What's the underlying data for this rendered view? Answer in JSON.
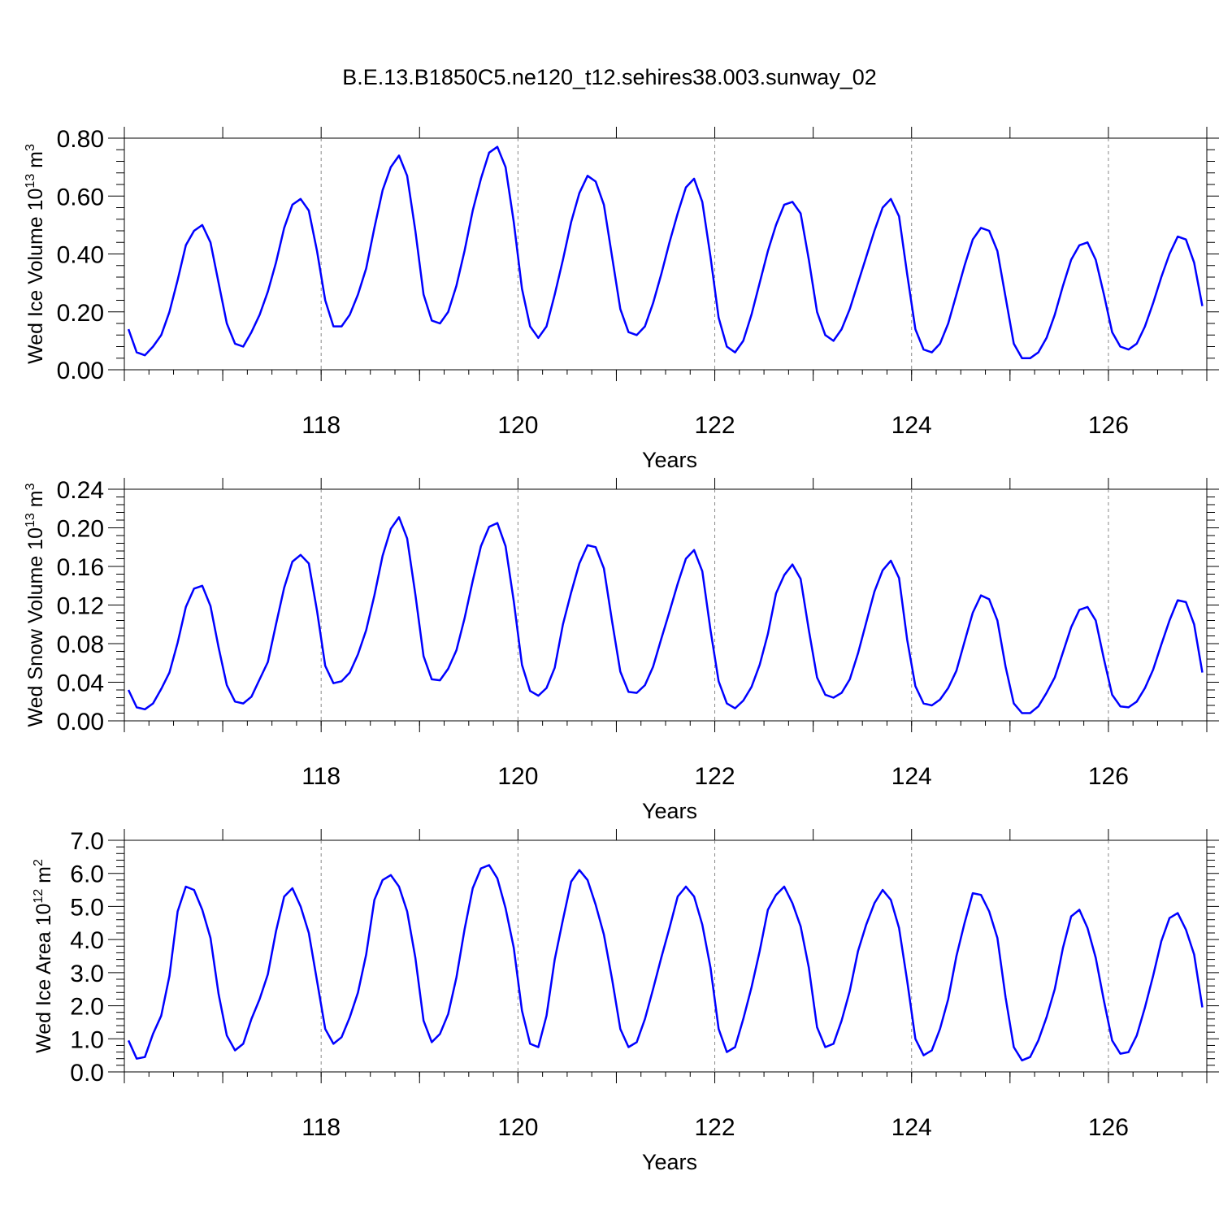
{
  "title": "B.E.13.B1850C5.ne120_t12.sehires38.003.sunway_02",
  "chart_data": [
    {
      "type": "line",
      "title": "B.E.13.B1850C5.ne120_t12.sehires38.003.sunway_02",
      "xlabel": "Years",
      "ylabel_main": "Wed Ice Volume 10",
      "ylabel_sup": "13",
      "ylabel_unit": " m",
      "ylabel_unit_sup": "3",
      "xlim": [
        116.0,
        127.0
      ],
      "ylim": [
        0.0,
        0.8
      ],
      "yticks": [
        "0.00",
        "0.20",
        "0.40",
        "0.60",
        "0.80"
      ],
      "xticks": [
        "118",
        "120",
        "122",
        "124",
        "126"
      ],
      "line_color": "#0000ff",
      "x_start": 116.042,
      "x_step": 0.0833,
      "values": [
        0.14,
        0.06,
        0.05,
        0.08,
        0.12,
        0.2,
        0.31,
        0.43,
        0.48,
        0.5,
        0.44,
        0.3,
        0.16,
        0.09,
        0.08,
        0.13,
        0.19,
        0.27,
        0.37,
        0.49,
        0.57,
        0.59,
        0.55,
        0.41,
        0.24,
        0.15,
        0.15,
        0.19,
        0.26,
        0.35,
        0.49,
        0.62,
        0.7,
        0.74,
        0.67,
        0.48,
        0.26,
        0.17,
        0.16,
        0.2,
        0.29,
        0.41,
        0.55,
        0.66,
        0.75,
        0.77,
        0.7,
        0.51,
        0.28,
        0.15,
        0.11,
        0.15,
        0.26,
        0.38,
        0.51,
        0.61,
        0.67,
        0.65,
        0.57,
        0.39,
        0.21,
        0.13,
        0.12,
        0.15,
        0.23,
        0.33,
        0.44,
        0.54,
        0.63,
        0.66,
        0.58,
        0.39,
        0.18,
        0.08,
        0.06,
        0.1,
        0.19,
        0.3,
        0.41,
        0.5,
        0.57,
        0.58,
        0.54,
        0.38,
        0.2,
        0.12,
        0.1,
        0.14,
        0.21,
        0.3,
        0.39,
        0.48,
        0.56,
        0.59,
        0.53,
        0.33,
        0.14,
        0.07,
        0.06,
        0.09,
        0.16,
        0.26,
        0.36,
        0.45,
        0.49,
        0.48,
        0.41,
        0.25,
        0.09,
        0.04,
        0.04,
        0.06,
        0.11,
        0.19,
        0.29,
        0.38,
        0.43,
        0.44,
        0.38,
        0.26,
        0.13,
        0.08,
        0.07,
        0.09,
        0.15,
        0.23,
        0.32,
        0.4,
        0.46,
        0.45,
        0.37,
        0.22
      ]
    },
    {
      "type": "line",
      "xlabel": "Years",
      "ylabel_main": "Wed Snow Volume 10",
      "ylabel_sup": "13",
      "ylabel_unit": " m",
      "ylabel_unit_sup": "3",
      "xlim": [
        116.0,
        127.0
      ],
      "ylim": [
        0.0,
        0.24
      ],
      "yticks": [
        "0.00",
        "0.04",
        "0.08",
        "0.12",
        "0.16",
        "0.20",
        "0.24"
      ],
      "xticks": [
        "118",
        "120",
        "122",
        "124",
        "126"
      ],
      "line_color": "#0000ff",
      "x_start": 116.042,
      "x_step": 0.0833,
      "values": [
        0.032,
        0.014,
        0.012,
        0.018,
        0.033,
        0.05,
        0.081,
        0.118,
        0.137,
        0.14,
        0.119,
        0.076,
        0.037,
        0.02,
        0.018,
        0.025,
        0.043,
        0.061,
        0.1,
        0.138,
        0.165,
        0.172,
        0.163,
        0.114,
        0.057,
        0.039,
        0.041,
        0.05,
        0.069,
        0.094,
        0.13,
        0.171,
        0.199,
        0.211,
        0.189,
        0.131,
        0.067,
        0.043,
        0.042,
        0.054,
        0.073,
        0.106,
        0.145,
        0.181,
        0.201,
        0.205,
        0.181,
        0.124,
        0.058,
        0.031,
        0.026,
        0.034,
        0.055,
        0.1,
        0.133,
        0.163,
        0.182,
        0.18,
        0.158,
        0.103,
        0.051,
        0.03,
        0.029,
        0.037,
        0.056,
        0.085,
        0.113,
        0.142,
        0.168,
        0.177,
        0.155,
        0.094,
        0.041,
        0.018,
        0.013,
        0.021,
        0.035,
        0.058,
        0.09,
        0.132,
        0.151,
        0.162,
        0.147,
        0.094,
        0.045,
        0.027,
        0.024,
        0.029,
        0.043,
        0.07,
        0.102,
        0.134,
        0.156,
        0.166,
        0.148,
        0.084,
        0.036,
        0.018,
        0.016,
        0.022,
        0.034,
        0.052,
        0.082,
        0.112,
        0.13,
        0.126,
        0.104,
        0.056,
        0.018,
        0.008,
        0.008,
        0.015,
        0.029,
        0.045,
        0.071,
        0.097,
        0.115,
        0.118,
        0.104,
        0.064,
        0.027,
        0.015,
        0.014,
        0.02,
        0.034,
        0.053,
        0.079,
        0.104,
        0.125,
        0.123,
        0.1,
        0.05
      ]
    },
    {
      "type": "line",
      "xlabel": "Years",
      "ylabel_main": "Wed Ice Area 10",
      "ylabel_sup": "12",
      "ylabel_unit": " m",
      "ylabel_unit_sup": "2",
      "xlim": [
        116.0,
        127.0
      ],
      "ylim": [
        0.0,
        7.0
      ],
      "yticks": [
        "0.0",
        "1.0",
        "2.0",
        "3.0",
        "4.0",
        "5.0",
        "6.0",
        "7.0"
      ],
      "xticks": [
        "118",
        "120",
        "122",
        "124",
        "126"
      ],
      "line_color": "#0000ff",
      "x_start": 116.042,
      "x_step": 0.0833,
      "values": [
        0.95,
        0.4,
        0.45,
        1.15,
        1.7,
        2.9,
        4.85,
        5.6,
        5.5,
        4.9,
        4.05,
        2.35,
        1.1,
        0.65,
        0.85,
        1.6,
        2.2,
        2.95,
        4.25,
        5.3,
        5.55,
        5.0,
        4.2,
        2.75,
        1.3,
        0.85,
        1.05,
        1.65,
        2.4,
        3.55,
        5.2,
        5.8,
        5.95,
        5.6,
        4.85,
        3.45,
        1.55,
        0.9,
        1.15,
        1.75,
        2.85,
        4.3,
        5.55,
        6.15,
        6.25,
        5.85,
        4.95,
        3.75,
        1.85,
        0.85,
        0.75,
        1.7,
        3.4,
        4.6,
        5.75,
        6.1,
        5.8,
        5.05,
        4.15,
        2.8,
        1.3,
        0.75,
        0.9,
        1.6,
        2.5,
        3.45,
        4.35,
        5.3,
        5.6,
        5.3,
        4.45,
        3.15,
        1.3,
        0.6,
        0.75,
        1.6,
        2.55,
        3.65,
        4.9,
        5.35,
        5.6,
        5.1,
        4.4,
        3.15,
        1.35,
        0.75,
        0.85,
        1.55,
        2.45,
        3.65,
        4.45,
        5.1,
        5.5,
        5.2,
        4.35,
        2.75,
        1.0,
        0.5,
        0.65,
        1.3,
        2.2,
        3.5,
        4.5,
        5.4,
        5.35,
        4.85,
        4.05,
        2.25,
        0.75,
        0.35,
        0.45,
        0.95,
        1.65,
        2.5,
        3.75,
        4.7,
        4.9,
        4.35,
        3.45,
        2.15,
        0.95,
        0.55,
        0.6,
        1.1,
        1.95,
        2.9,
        3.95,
        4.65,
        4.8,
        4.3,
        3.55,
        1.95
      ]
    }
  ]
}
